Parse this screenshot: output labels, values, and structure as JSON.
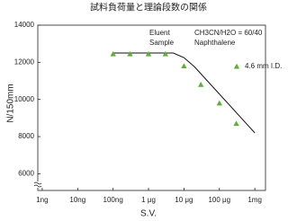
{
  "chart_data": {
    "type": "scatter",
    "title": "試料負荷量と理論段数の関係",
    "x_label": "S.V.",
    "y_label": "N/150mm",
    "annotations": [
      [
        "Eluent",
        "CH3CN/H2O = 60/40"
      ],
      [
        "Sample",
        "Naphthalene"
      ]
    ],
    "xscale": "log",
    "xlim": [
      7.5e-10,
      0.002
    ],
    "xticks": [
      {
        "value": 1e-09,
        "label": "1ng"
      },
      {
        "value": 1e-08,
        "label": "10ng"
      },
      {
        "value": 1e-07,
        "label": "100ng"
      },
      {
        "value": 1e-06,
        "label": "1 μg"
      },
      {
        "value": 1e-05,
        "label": "10 μg"
      },
      {
        "value": 0.0001,
        "label": "100 μg"
      },
      {
        "value": 0.001,
        "label": "1mg"
      }
    ],
    "ylim": [
      5100,
      14000
    ],
    "yticks": [
      6000,
      8000,
      10000,
      12000,
      14000
    ],
    "series": [
      {
        "name": "4.6 mm I.D.",
        "color": "#5fae3a",
        "x": [
          1e-07,
          3e-07,
          1e-06,
          3e-06,
          1e-05,
          3e-05,
          0.0001,
          0.0003
        ],
        "values": [
          12450,
          12450,
          12450,
          12450,
          11800,
          10800,
          9800,
          8700
        ]
      }
    ],
    "fit_line": {
      "color": "#111",
      "x": [
        1e-07,
        5e-06,
        1e-05,
        2e-05,
        0.001
      ],
      "values": [
        12500,
        12500,
        12250,
        11750,
        8200
      ]
    }
  }
}
